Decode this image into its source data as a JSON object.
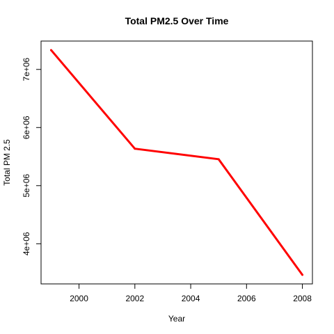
{
  "chart_data": {
    "type": "line",
    "title": "Total PM2.5 Over Time",
    "xlabel": "Year",
    "ylabel": "Total PM 2.5",
    "x": [
      1999,
      2002,
      2005,
      2008
    ],
    "series": [
      {
        "values": [
          7332967,
          5635780,
          5454703,
          3464206
        ],
        "color": "#ff0000"
      }
    ],
    "xlim": [
      1998.64,
      2008.36
    ],
    "ylim": [
      3309135,
      7488038
    ],
    "x_ticks": [
      2000,
      2002,
      2004,
      2006,
      2008
    ],
    "x_tick_labels": [
      "2000",
      "2002",
      "2004",
      "2006",
      "2008"
    ],
    "y_ticks": [
      4000000,
      5000000,
      6000000,
      7000000
    ],
    "y_tick_labels": [
      "4e+06",
      "5e+06",
      "6e+06",
      "7e+06"
    ],
    "grid": false,
    "legend": "none"
  }
}
